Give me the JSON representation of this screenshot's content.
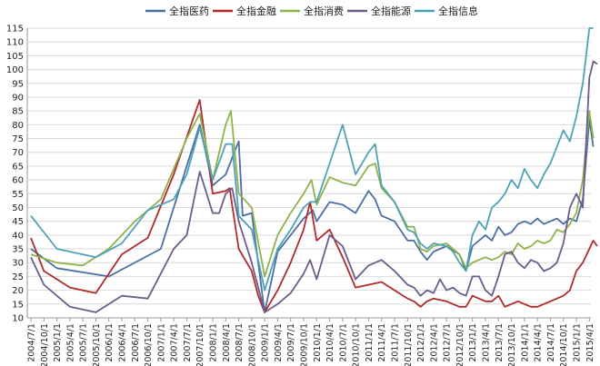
{
  "chart_data": {
    "type": "line",
    "title": "",
    "xlabel": "",
    "ylabel": "",
    "ylim": [
      10,
      115
    ],
    "yticks": [
      10,
      15,
      20,
      25,
      30,
      35,
      40,
      45,
      50,
      55,
      60,
      65,
      70,
      75,
      80,
      85,
      90,
      95,
      100,
      105,
      110,
      115
    ],
    "grid": true,
    "legend_position": "top",
    "x_tick_labels": [
      "2004/7/1",
      "2004/10/1",
      "2005/1/1",
      "2005/4/1",
      "2005/7/1",
      "2005/10/1",
      "2006/1/1",
      "2006/4/1",
      "2006/7/1",
      "2006/10/1",
      "2007/1/1",
      "2007/4/1",
      "2007/7/1",
      "2007/10/1",
      "2008/1/1",
      "2008/4/1",
      "2008/7/1",
      "2008/10/1",
      "2009/1/1",
      "2009/4/1",
      "2009/7/1",
      "2009/10/1",
      "2010/1/1",
      "2010/4/1",
      "2010/7/1",
      "2010/10/1",
      "2011/1/1",
      "2011/4/1",
      "2011/7/1",
      "2011/10/1",
      "2012/1/1",
      "2012/4/1",
      "2012/7/1",
      "2012/10/1",
      "2013/1/1",
      "2013/4/1",
      "2013/7/1",
      "2013/10/1",
      "2014/1/1",
      "2014/4/1",
      "2014/7/1",
      "2014/10/1",
      "2015/1/1",
      "2015/4/1"
    ],
    "series": [
      {
        "name": "全指医药",
        "color": "#4a6fa5",
        "points": [
          [
            0,
            35
          ],
          [
            2,
            28
          ],
          [
            6,
            25
          ],
          [
            10,
            35
          ],
          [
            13,
            80
          ],
          [
            14,
            58
          ],
          [
            15,
            62
          ],
          [
            15.5,
            68
          ],
          [
            16,
            74
          ],
          [
            16.3,
            47
          ],
          [
            17,
            48
          ],
          [
            18,
            12
          ],
          [
            19,
            34
          ],
          [
            20,
            40
          ],
          [
            21,
            46
          ],
          [
            21.7,
            49
          ],
          [
            22,
            45
          ],
          [
            23,
            52
          ],
          [
            24,
            51
          ],
          [
            25,
            48
          ],
          [
            26,
            56
          ],
          [
            26.5,
            53
          ],
          [
            27,
            47
          ],
          [
            28,
            45
          ],
          [
            29,
            38
          ],
          [
            29.5,
            38
          ],
          [
            30,
            34
          ],
          [
            30.5,
            31
          ],
          [
            31,
            34
          ],
          [
            32,
            36
          ],
          [
            33,
            33
          ],
          [
            33.5,
            27
          ],
          [
            34,
            36
          ],
          [
            35,
            40
          ],
          [
            35.5,
            38
          ],
          [
            36,
            43
          ],
          [
            36.5,
            40
          ],
          [
            37,
            41
          ],
          [
            37.5,
            44
          ],
          [
            38,
            45
          ],
          [
            38.5,
            44
          ],
          [
            39,
            46
          ],
          [
            39.5,
            44
          ],
          [
            40,
            45
          ],
          [
            40.5,
            46
          ],
          [
            41,
            44
          ],
          [
            41.5,
            46
          ],
          [
            42,
            45
          ],
          [
            42.5,
            53
          ],
          [
            43,
            82
          ],
          [
            43.3,
            72
          ]
        ]
      },
      {
        "name": "全指金融",
        "color": "#b22a2a",
        "points": [
          [
            0,
            39
          ],
          [
            1,
            27
          ],
          [
            3,
            21
          ],
          [
            5,
            19
          ],
          [
            7,
            33
          ],
          [
            9,
            39
          ],
          [
            11,
            62
          ],
          [
            13,
            89
          ],
          [
            14,
            55
          ],
          [
            15,
            56
          ],
          [
            15.3,
            57
          ],
          [
            16,
            35
          ],
          [
            17,
            27
          ],
          [
            17.5,
            18
          ],
          [
            18,
            12
          ],
          [
            19,
            20
          ],
          [
            20,
            30
          ],
          [
            21,
            42
          ],
          [
            21.5,
            52
          ],
          [
            22,
            38
          ],
          [
            23,
            42
          ],
          [
            24,
            32
          ],
          [
            25,
            21
          ],
          [
            27,
            23
          ],
          [
            29,
            17
          ],
          [
            29.5,
            16
          ],
          [
            30,
            14
          ],
          [
            30.5,
            16
          ],
          [
            31,
            17
          ],
          [
            32,
            16
          ],
          [
            33,
            14
          ],
          [
            33.5,
            14
          ],
          [
            34,
            18
          ],
          [
            35,
            16
          ],
          [
            35.5,
            16
          ],
          [
            36,
            18
          ],
          [
            36.5,
            14
          ],
          [
            37,
            15
          ],
          [
            37.5,
            16
          ],
          [
            38,
            15
          ],
          [
            38.5,
            14
          ],
          [
            39,
            14
          ],
          [
            39.5,
            15
          ],
          [
            40,
            16
          ],
          [
            40.5,
            17
          ],
          [
            41,
            18
          ],
          [
            41.5,
            20
          ],
          [
            42,
            27
          ],
          [
            42.5,
            30
          ],
          [
            43,
            35
          ],
          [
            43.3,
            38
          ],
          [
            43.6,
            36
          ]
        ]
      },
      {
        "name": "全指消费",
        "color": "#8fb34a",
        "points": [
          [
            0,
            33
          ],
          [
            2,
            30
          ],
          [
            4,
            29
          ],
          [
            6,
            35
          ],
          [
            8,
            45
          ],
          [
            10,
            53
          ],
          [
            12,
            75
          ],
          [
            13,
            84
          ],
          [
            14,
            60
          ],
          [
            15,
            80
          ],
          [
            15.4,
            85
          ],
          [
            16,
            55
          ],
          [
            17,
            50
          ],
          [
            18,
            25
          ],
          [
            19,
            40
          ],
          [
            20,
            48
          ],
          [
            21,
            55
          ],
          [
            21.6,
            60
          ],
          [
            22,
            51
          ],
          [
            23,
            61
          ],
          [
            24,
            59
          ],
          [
            25,
            58
          ],
          [
            26,
            65
          ],
          [
            26.5,
            66
          ],
          [
            27,
            57
          ],
          [
            28,
            52
          ],
          [
            29,
            43
          ],
          [
            29.5,
            43
          ],
          [
            30,
            35
          ],
          [
            30.5,
            34
          ],
          [
            31,
            36
          ],
          [
            32,
            37
          ],
          [
            32.5,
            35
          ],
          [
            33,
            33
          ],
          [
            33.5,
            28
          ],
          [
            34,
            30
          ],
          [
            35,
            32
          ],
          [
            35.5,
            31
          ],
          [
            36,
            32
          ],
          [
            36.5,
            34
          ],
          [
            37,
            33
          ],
          [
            37.5,
            37
          ],
          [
            38,
            35
          ],
          [
            38.5,
            36
          ],
          [
            39,
            38
          ],
          [
            39.5,
            37
          ],
          [
            40,
            38
          ],
          [
            40.5,
            42
          ],
          [
            41,
            41
          ],
          [
            41.5,
            44
          ],
          [
            42,
            48
          ],
          [
            42.5,
            60
          ],
          [
            43,
            85
          ],
          [
            43.3,
            75
          ]
        ]
      },
      {
        "name": "全指能源",
        "color": "#6d5b8c",
        "points": [
          [
            0,
            32
          ],
          [
            1,
            22
          ],
          [
            3,
            14
          ],
          [
            5,
            12
          ],
          [
            7,
            18
          ],
          [
            9,
            17
          ],
          [
            11,
            35
          ],
          [
            12,
            40
          ],
          [
            13,
            63
          ],
          [
            14,
            48
          ],
          [
            14.5,
            48
          ],
          [
            15,
            55
          ],
          [
            15.5,
            57
          ],
          [
            16,
            45
          ],
          [
            17,
            30
          ],
          [
            18,
            12
          ],
          [
            19,
            15
          ],
          [
            20,
            19
          ],
          [
            21,
            26
          ],
          [
            21.5,
            31
          ],
          [
            22,
            24
          ],
          [
            23,
            40
          ],
          [
            24,
            36
          ],
          [
            25,
            24
          ],
          [
            26,
            29
          ],
          [
            27,
            31
          ],
          [
            28,
            27
          ],
          [
            29,
            22
          ],
          [
            29.5,
            21
          ],
          [
            30,
            18
          ],
          [
            30.5,
            20
          ],
          [
            31,
            19
          ],
          [
            31.5,
            24
          ],
          [
            32,
            20
          ],
          [
            32.5,
            21
          ],
          [
            33,
            19
          ],
          [
            33.5,
            18
          ],
          [
            34,
            25
          ],
          [
            34.5,
            25
          ],
          [
            35,
            20
          ],
          [
            35.5,
            18
          ],
          [
            36,
            25
          ],
          [
            36.5,
            33
          ],
          [
            37,
            34
          ],
          [
            37.5,
            30
          ],
          [
            38,
            28
          ],
          [
            38.5,
            31
          ],
          [
            39,
            30
          ],
          [
            39.5,
            27
          ],
          [
            40,
            28
          ],
          [
            40.5,
            30
          ],
          [
            41,
            37
          ],
          [
            41.5,
            50
          ],
          [
            42,
            55
          ],
          [
            42.5,
            50
          ],
          [
            43,
            97
          ],
          [
            43.3,
            103
          ],
          [
            43.6,
            102
          ]
        ]
      },
      {
        "name": "全指信息",
        "color": "#4ea2b8",
        "points": [
          [
            0,
            47
          ],
          [
            2,
            35
          ],
          [
            5,
            32
          ],
          [
            7,
            37
          ],
          [
            9,
            49
          ],
          [
            11,
            53
          ],
          [
            12,
            62
          ],
          [
            13,
            79
          ],
          [
            14,
            60
          ],
          [
            15,
            73
          ],
          [
            15.5,
            73
          ],
          [
            16,
            47
          ],
          [
            17,
            42
          ],
          [
            18,
            20
          ],
          [
            19,
            35
          ],
          [
            20,
            42
          ],
          [
            21,
            50
          ],
          [
            21.5,
            52
          ],
          [
            22,
            52
          ],
          [
            23,
            66
          ],
          [
            24,
            80
          ],
          [
            25,
            62
          ],
          [
            26,
            70
          ],
          [
            26.5,
            73
          ],
          [
            27,
            58
          ],
          [
            28,
            52
          ],
          [
            29,
            42
          ],
          [
            29.5,
            41
          ],
          [
            30,
            37
          ],
          [
            30.5,
            35
          ],
          [
            31,
            37
          ],
          [
            32,
            36
          ],
          [
            32.5,
            34
          ],
          [
            33,
            30
          ],
          [
            33.5,
            27
          ],
          [
            34,
            40
          ],
          [
            34.5,
            45
          ],
          [
            35,
            42
          ],
          [
            35.5,
            50
          ],
          [
            36,
            52
          ],
          [
            36.5,
            55
          ],
          [
            37,
            60
          ],
          [
            37.5,
            57
          ],
          [
            38,
            64
          ],
          [
            38.5,
            60
          ],
          [
            39,
            57
          ],
          [
            39.5,
            62
          ],
          [
            40,
            66
          ],
          [
            40.5,
            72
          ],
          [
            41,
            78
          ],
          [
            41.5,
            74
          ],
          [
            42,
            83
          ],
          [
            42.5,
            95
          ],
          [
            43,
            115
          ],
          [
            43.3,
            115
          ]
        ]
      }
    ]
  }
}
